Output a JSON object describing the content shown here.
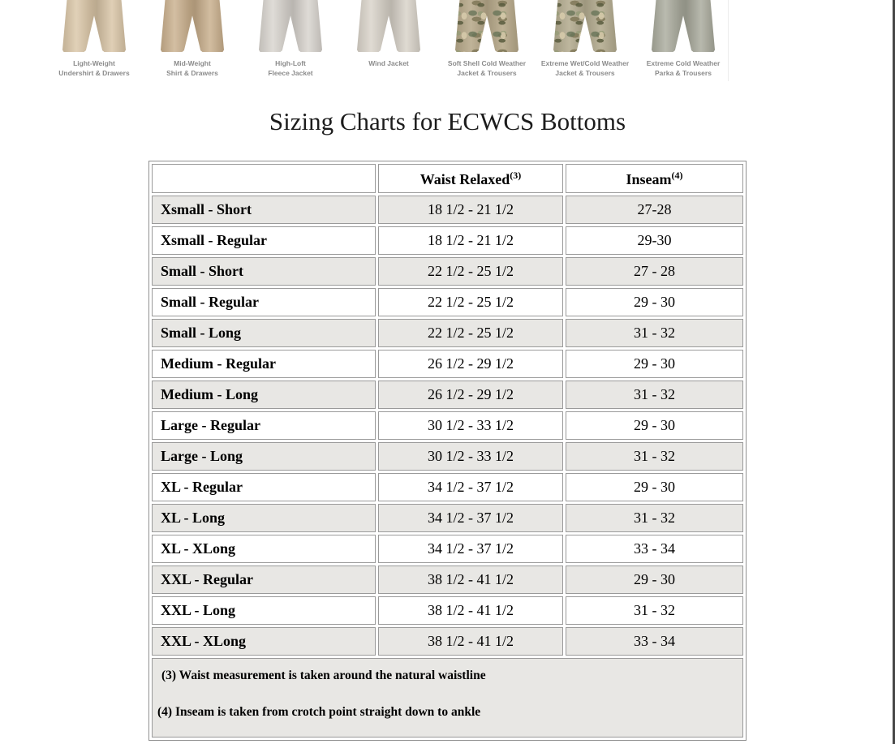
{
  "page": {
    "title": "Sizing Charts for ECWCS Bottoms"
  },
  "products": [
    {
      "label": "Light-Weight\nUndershirt & Drawers",
      "legs_color": "#d9c5a6",
      "pattern": "solid"
    },
    {
      "label": "Mid-Weight\nShirt & Drawers",
      "legs_color": "#c8ae8b",
      "pattern": "solid"
    },
    {
      "label": "High-Loft\nFleece Jacket",
      "legs_color": "#d7d3cd",
      "pattern": "solid"
    },
    {
      "label": "Wind Jacket",
      "legs_color": "#d8d2c8",
      "pattern": "solid"
    },
    {
      "label": "Soft Shell Cold Weather\nJacket & Trousers",
      "legs_color": "#b7a98a",
      "pattern": "camo"
    },
    {
      "label": "Extreme Wet/Cold Weather\nJacket & Trousers",
      "legs_color": "#b4ac90",
      "pattern": "camo"
    },
    {
      "label": "Extreme Cold Weather\nParka & Trousers",
      "legs_color": "#a8a99b",
      "pattern": "solid"
    }
  ],
  "sizing_table": {
    "columns": [
      {
        "label": "",
        "sup": ""
      },
      {
        "label": "Waist Relaxed",
        "sup": "(3)"
      },
      {
        "label": "Inseam",
        "sup": "(4)"
      }
    ],
    "rows": [
      {
        "size": "Xsmall - Short",
        "waist": "18 1/2 - 21 1/2",
        "inseam": "27-28"
      },
      {
        "size": "Xsmall - Regular",
        "waist": "18 1/2 - 21 1/2",
        "inseam": "29-30"
      },
      {
        "size": "Small - Short",
        "waist": "22 1/2 - 25 1/2",
        "inseam": "27 - 28"
      },
      {
        "size": "Small - Regular",
        "waist": "22 1/2 - 25 1/2",
        "inseam": "29 - 30"
      },
      {
        "size": "Small - Long",
        "waist": "22 1/2 - 25 1/2",
        "inseam": "31 - 32"
      },
      {
        "size": "Medium - Regular",
        "waist": "26 1/2 - 29 1/2",
        "inseam": "29 - 30"
      },
      {
        "size": "Medium - Long",
        "waist": "26 1/2 - 29 1/2",
        "inseam": "31 - 32"
      },
      {
        "size": "Large - Regular",
        "waist": "30 1/2 - 33 1/2",
        "inseam": "29 - 30"
      },
      {
        "size": "Large - Long",
        "waist": "30 1/2 - 33 1/2",
        "inseam": "31 - 32"
      },
      {
        "size": "XL - Regular",
        "waist": "34 1/2 - 37 1/2",
        "inseam": "29 - 30"
      },
      {
        "size": "XL - Long",
        "waist": "34 1/2 - 37 1/2",
        "inseam": "31 - 32"
      },
      {
        "size": "XL - XLong",
        "waist": "34 1/2 - 37 1/2",
        "inseam": "33 - 34"
      },
      {
        "size": "XXL - Regular",
        "waist": "38 1/2 - 41 1/2",
        "inseam": "29 - 30"
      },
      {
        "size": "XXL - Long",
        "waist": "38 1/2 - 41 1/2",
        "inseam": "31 - 32"
      },
      {
        "size": "XXL - XLong",
        "waist": "38 1/2 - 41 1/2",
        "inseam": "33 - 34"
      }
    ],
    "footnotes": [
      "(3) Waist measurement is taken around the natural waistline",
      "(4) Inseam is taken from crotch point straight down to ankle"
    ]
  },
  "colors": {
    "row_alt": "#e8e7e4",
    "table_border": "#9a9a9a",
    "product_label_text": "#8b8b8b",
    "title_text": "#1c1c1c",
    "window_edge": "#474747"
  }
}
